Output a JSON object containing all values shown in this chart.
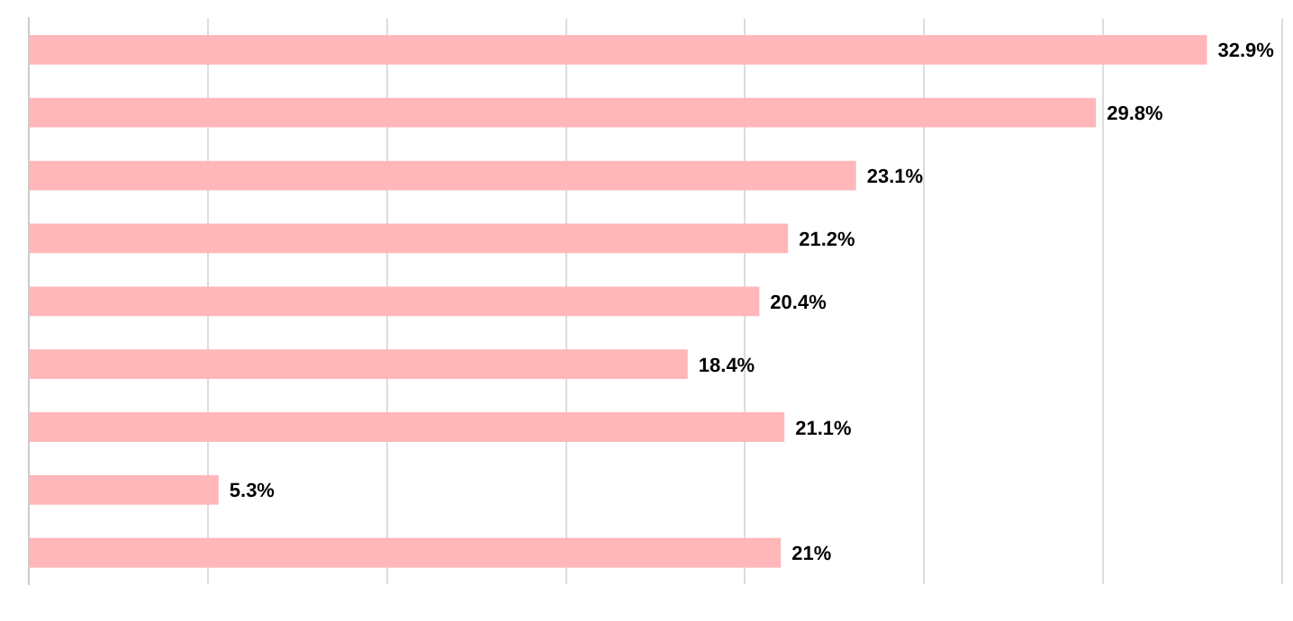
{
  "chart_data": {
    "type": "bar",
    "orientation": "horizontal",
    "categories": [
      null,
      null,
      null,
      null,
      null,
      null,
      null,
      null,
      null
    ],
    "values": [
      32.9,
      29.8,
      23.1,
      21.2,
      20.4,
      18.4,
      21.1,
      5.3,
      21
    ],
    "value_labels": [
      "32.9%",
      "29.8%",
      "23.1%",
      "21.2%",
      "20.4%",
      "18.4%",
      "21.1%",
      "5.3%",
      "21%"
    ],
    "color": "#ffb7b9",
    "xlim": [
      0,
      35
    ],
    "xticks": [
      {
        "value": 0,
        "label": null
      },
      {
        "value": 5,
        "label": null
      },
      {
        "value": 10,
        "label": null
      },
      {
        "value": 15,
        "label": null
      },
      {
        "value": 20,
        "label": null
      },
      {
        "value": 25,
        "label": null
      },
      {
        "value": 30,
        "label": null
      },
      {
        "value": 35,
        "label": null
      }
    ],
    "grid": "x"
  }
}
